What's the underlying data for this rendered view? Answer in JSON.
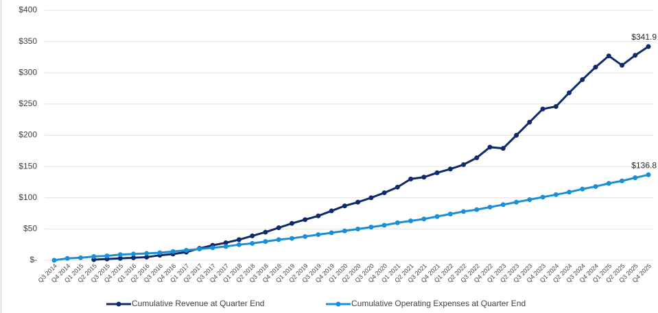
{
  "chart_data": {
    "type": "line",
    "categories": [
      "Q3 2014",
      "Q4 2014",
      "Q1 2015",
      "Q2 2015",
      "Q3 2015",
      "Q4 2015",
      "Q1 2016",
      "Q2 2016",
      "Q3 2016",
      "Q4 2016",
      "Q1 2017",
      "Q2 2017",
      "Q3 2017",
      "Q4 2017",
      "Q1 2018",
      "Q2 2018",
      "Q3 2018",
      "Q4 2018",
      "Q1 2019",
      "Q2 2019",
      "Q3 2019",
      "Q4 2019",
      "Q1 2020",
      "Q2 2020",
      "Q3 2020",
      "Q4 2020",
      "Q1 2021",
      "Q2 2021",
      "Q3 2021",
      "Q4 2021",
      "Q1 2022",
      "Q2 2022",
      "Q3 2022",
      "Q4 2022",
      "Q1 2023",
      "Q2 2023",
      "Q3 2023",
      "Q4 2023",
      "Q1 2024",
      "Q2 2024",
      "Q3 2024",
      "Q4 2024",
      "Q1 2025",
      "Q2 2025",
      "Q3 2025",
      "Q4 2025"
    ],
    "series": [
      {
        "name": "Cumulative Revenue at Quarter End",
        "color": "#0d2a6b",
        "values": [
          null,
          null,
          null,
          1,
          2,
          3,
          4,
          5,
          8,
          10,
          13,
          19,
          24,
          28,
          33,
          39,
          45,
          52,
          59,
          65,
          71,
          79,
          87,
          93,
          100,
          108,
          117,
          130,
          133,
          140,
          146,
          153,
          164,
          181,
          179,
          200,
          221,
          242,
          246,
          268,
          289,
          309,
          327,
          312,
          328,
          341.9
        ],
        "value_labels": [
          null,
          null,
          null,
          null,
          null,
          null,
          null,
          null,
          null,
          null,
          null,
          null,
          null,
          null,
          null,
          null,
          null,
          null,
          null,
          null,
          null,
          null,
          null,
          null,
          null,
          null,
          null,
          null,
          null,
          null,
          null,
          null,
          null,
          null,
          null,
          null,
          null,
          null,
          null,
          null,
          null,
          null,
          null,
          null,
          null,
          "$341.9"
        ]
      },
      {
        "name": "Cumulative Operating Expenses at Quarter End",
        "color": "#1b8fd6",
        "values": [
          0,
          3,
          4,
          6,
          7,
          9,
          10,
          11,
          12,
          14,
          16,
          18,
          20,
          22,
          25,
          27,
          30,
          33,
          35,
          38,
          41,
          44,
          47,
          50,
          53,
          56,
          60,
          63,
          66,
          70,
          74,
          78,
          81,
          85,
          89,
          93,
          97,
          101,
          105,
          109,
          114,
          118,
          123,
          127,
          132,
          136.8
        ],
        "value_labels": [
          null,
          null,
          null,
          null,
          null,
          null,
          null,
          null,
          null,
          null,
          null,
          null,
          null,
          null,
          null,
          null,
          null,
          null,
          null,
          null,
          null,
          null,
          null,
          null,
          null,
          null,
          null,
          null,
          null,
          null,
          null,
          null,
          null,
          null,
          null,
          null,
          null,
          null,
          null,
          null,
          null,
          null,
          null,
          null,
          null,
          "$136.8"
        ]
      }
    ],
    "ylim": [
      0,
      400
    ],
    "yticks": [
      {
        "value": 0,
        "label": "$-"
      },
      {
        "value": 50,
        "label": "$50"
      },
      {
        "value": 100,
        "label": "$100"
      },
      {
        "value": 150,
        "label": "$150"
      },
      {
        "value": 200,
        "label": "$200"
      },
      {
        "value": 250,
        "label": "$250"
      },
      {
        "value": 300,
        "label": "$300"
      },
      {
        "value": 350,
        "label": "$350"
      },
      {
        "value": 400,
        "label": "$400"
      }
    ],
    "grid": true,
    "legend": "bottom"
  }
}
